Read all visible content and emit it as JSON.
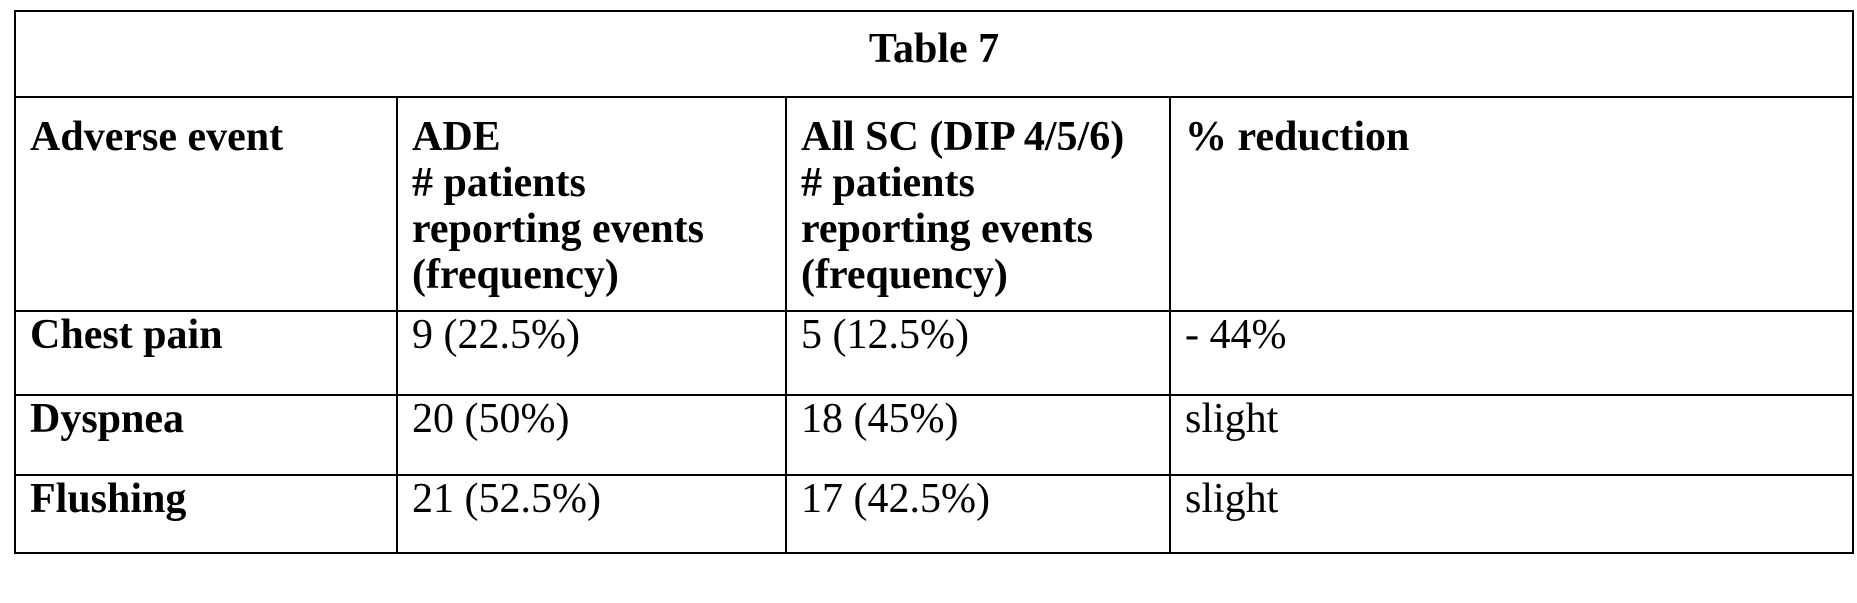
{
  "table": {
    "caption": "Table 7",
    "headers": [
      {
        "lines": [
          "Adverse event"
        ]
      },
      {
        "lines": [
          "ADE",
          "# patients",
          "reporting events",
          "(frequency)"
        ]
      },
      {
        "lines": [
          "All SC (DIP 4/5/6)",
          "# patients",
          "reporting events",
          "(frequency)"
        ]
      },
      {
        "lines": [
          "% reduction"
        ]
      }
    ],
    "rows": [
      {
        "event": "Chest pain",
        "ade": "9 (22.5%)",
        "all_sc": "5 (12.5%)",
        "reduction": "- 44%"
      },
      {
        "event": "Dyspnea",
        "ade": "20 (50%)",
        "all_sc": "18 (45%)",
        "reduction": "slight"
      },
      {
        "event": "Flushing",
        "ade": "21 (52.5%)",
        "all_sc": "17 (42.5%)",
        "reduction": "slight"
      }
    ]
  }
}
